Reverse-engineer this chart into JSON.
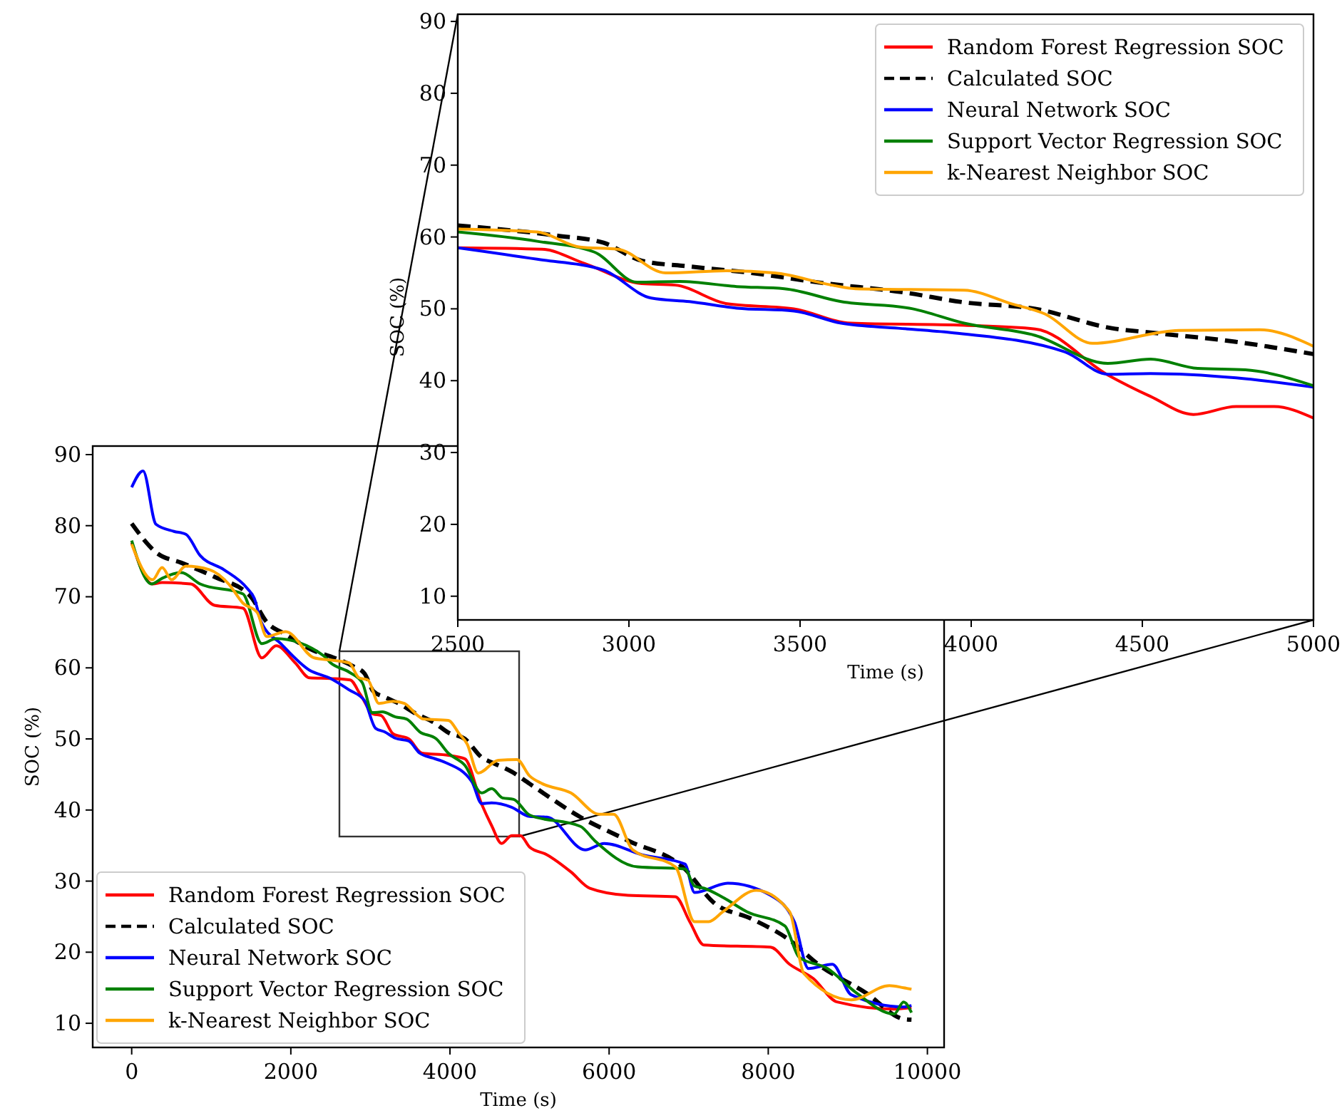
{
  "chart_data": [
    {
      "type": "line",
      "xlabel": "Time (s)",
      "ylabel": "SOC (%)",
      "xlim": [
        -490,
        10210
      ],
      "ylim": [
        6.6,
        91.2
      ],
      "xticks": [
        0,
        2000,
        4000,
        6000,
        8000,
        10000
      ],
      "yticks": [
        10,
        20,
        30,
        40,
        50,
        60,
        70,
        80,
        90
      ],
      "grid": false,
      "legend": "bottom left",
      "series": [
        {
          "name": "Random Forest Regression SOC",
          "color": "#ff0000",
          "line_style": "solid",
          "x": [
            0,
            263,
            382,
            740,
            1040,
            1398,
            1636,
            1816,
            2055,
            2235,
            2500,
            2746,
            2871,
            3037,
            3135,
            3287,
            3482,
            3649,
            3979,
            4187,
            4399,
            4524,
            4649,
            4774,
            4885,
            5000,
            5220,
            5520,
            5758,
            6237,
            6833,
            7013,
            7192,
            8029,
            8268,
            8566,
            8865,
            9582,
            9800
          ],
          "values": [
            77.6,
            71.8,
            72.0,
            71.8,
            68.8,
            68.4,
            61.4,
            63.1,
            60.7,
            58.6,
            58.5,
            58.3,
            56.3,
            53.5,
            53.3,
            50.7,
            50.0,
            48.0,
            47.7,
            47.2,
            40.8,
            37.8,
            35.3,
            36.4,
            36.4,
            34.8,
            33.7,
            31.3,
            29.0,
            28.0,
            27.8,
            24.3,
            21.0,
            20.7,
            18.3,
            16.3,
            13.0,
            12.0,
            12.2
          ]
        },
        {
          "name": "Calculated SOC",
          "color": "#000000",
          "line_style": "dashed",
          "x": [
            0,
            323,
            620,
            1040,
            1490,
            1700,
            1935,
            2290,
            2500,
            2787,
            2926,
            3037,
            3176,
            3357,
            3565,
            3801,
            3979,
            4187,
            4411,
            4524,
            4774,
            5000,
            5640,
            6237,
            6953,
            7312,
            7790,
            8268,
            8626,
            9224,
            9701,
            9800
          ],
          "values": [
            80.3,
            76.1,
            74.8,
            72.8,
            70.1,
            66.4,
            64.7,
            62.4,
            61.6,
            60.2,
            59.2,
            56.7,
            55.9,
            55.0,
            53.6,
            52.3,
            50.9,
            50.0,
            47.3,
            46.7,
            45.4,
            43.7,
            39.0,
            35.7,
            31.7,
            27.0,
            24.7,
            21.7,
            18.3,
            14.3,
            10.6,
            10.5
          ]
        },
        {
          "name": "Neural Network SOC",
          "color": "#0000ff",
          "line_style": "solid",
          "x": [
            0,
            143,
            305,
            530,
            680,
            860,
            1160,
            1450,
            1540,
            1630,
            1875,
            2230,
            2500,
            2732,
            2925,
            3065,
            3177,
            3315,
            3482,
            3620,
            3787,
            3940,
            4274,
            4399,
            4524,
            4774,
            5000,
            5220,
            5699,
            5938,
            6416,
            6953,
            7073,
            7491,
            8029,
            8327,
            8506,
            8805,
            9044,
            9701,
            9800
          ],
          "values": [
            85.4,
            87.7,
            80.2,
            79.2,
            78.8,
            75.8,
            73.8,
            71.2,
            69.8,
            66.4,
            63.4,
            59.7,
            58.5,
            56.9,
            55.4,
            51.5,
            51.0,
            50.1,
            49.7,
            48.0,
            47.3,
            46.7,
            44.0,
            40.9,
            41.0,
            40.4,
            39.1,
            39.0,
            34.4,
            35.3,
            33.7,
            32.4,
            28.4,
            29.7,
            28.0,
            24.3,
            17.7,
            18.3,
            14.0,
            12.3,
            12.5
          ]
        },
        {
          "name": "Support Vector Regression SOC",
          "color": "#008000",
          "line_style": "solid",
          "x": [
            0,
            250,
            382,
            620,
            860,
            1398,
            1636,
            1816,
            2413,
            2500,
            2732,
            2899,
            3024,
            3149,
            3315,
            3454,
            3620,
            3829,
            3979,
            4187,
            4399,
            4524,
            4662,
            4801,
            5000,
            5640,
            5818,
            6357,
            6953,
            7073,
            7192,
            7431,
            7730,
            8208,
            8387,
            8745,
            9104,
            9582,
            9701,
            9800
          ],
          "values": [
            77.9,
            71.8,
            72.6,
            73.4,
            71.8,
            70.4,
            63.4,
            64.1,
            61.7,
            60.7,
            59.4,
            57.9,
            53.7,
            53.8,
            53.1,
            52.8,
            51.0,
            50.0,
            48.0,
            46.3,
            42.4,
            43.0,
            41.7,
            41.5,
            39.3,
            37.7,
            35.7,
            32.0,
            31.7,
            29.3,
            29.0,
            27.7,
            25.7,
            23.7,
            19.3,
            17.7,
            14.3,
            11.3,
            13.0,
            11.5
          ]
        },
        {
          "name": "k-Nearest Neighbor SOC",
          "color": "#ffa500",
          "line_style": "solid",
          "x": [
            0,
            263,
            382,
            502,
            680,
            980,
            1219,
            1398,
            1577,
            1697,
            1935,
            2294,
            2500,
            2732,
            2857,
            2968,
            3107,
            3287,
            3426,
            3593,
            3662,
            3979,
            4118,
            4215,
            4354,
            4607,
            4842,
            5000,
            5161,
            5520,
            5878,
            6057,
            6296,
            6833,
            7073,
            7252,
            7431,
            7849,
            8268,
            8447,
            9044,
            9522,
            9701,
            9800
          ],
          "values": [
            77.4,
            72.4,
            74.1,
            72.4,
            74.3,
            73.8,
            71.8,
            69.1,
            67.8,
            64.4,
            65.1,
            61.4,
            61.1,
            60.7,
            58.6,
            58.3,
            55.0,
            55.3,
            55.0,
            53.3,
            52.8,
            52.6,
            50.7,
            49.3,
            45.2,
            47.0,
            47.1,
            44.8,
            43.7,
            42.4,
            39.4,
            39.4,
            34.4,
            32.0,
            24.3,
            24.3,
            25.7,
            28.7,
            25.7,
            17.0,
            13.3,
            15.3,
            15.0,
            14.8
          ]
        }
      ]
    },
    {
      "type": "line",
      "xlabel": "Time (s)",
      "ylabel": "SOC (%)",
      "xlim": [
        2500,
        5000
      ],
      "ylim": [
        6.7,
        91
      ],
      "xticks": [
        2500,
        3000,
        3500,
        4000,
        4500,
        5000
      ],
      "yticks": [
        10,
        20,
        30,
        40,
        50,
        60,
        70,
        80,
        90
      ],
      "grid": false,
      "legend": "top right",
      "series": [
        {
          "name": "Random Forest Regression SOC",
          "color": "#ff0000",
          "line_style": "solid",
          "x": [
            2500,
            2746,
            2871,
            3037,
            3135,
            3287,
            3482,
            3649,
            3979,
            4187,
            4399,
            4524,
            4649,
            4774,
            4885,
            5000
          ],
          "values": [
            58.5,
            58.3,
            56.3,
            53.5,
            53.3,
            50.7,
            50.0,
            48.0,
            47.7,
            47.2,
            40.8,
            37.8,
            35.3,
            36.4,
            36.4,
            34.8
          ]
        },
        {
          "name": "Calculated SOC",
          "color": "#000000",
          "line_style": "dashed",
          "x": [
            2500,
            2787,
            2926,
            3037,
            3176,
            3357,
            3565,
            3801,
            3979,
            4187,
            4411,
            4524,
            4774,
            5000
          ],
          "values": [
            61.6,
            60.2,
            59.2,
            56.7,
            55.9,
            55.0,
            53.6,
            52.3,
            50.9,
            50.0,
            47.3,
            46.7,
            45.4,
            43.7
          ]
        },
        {
          "name": "Neural Network SOC",
          "color": "#0000ff",
          "line_style": "solid",
          "x": [
            2500,
            2732,
            2925,
            3065,
            3177,
            3315,
            3482,
            3620,
            3787,
            3940,
            4274,
            4399,
            4524,
            4774,
            5000
          ],
          "values": [
            58.5,
            56.9,
            55.4,
            51.5,
            51.0,
            50.1,
            49.7,
            48.0,
            47.3,
            46.7,
            44.0,
            40.9,
            41.0,
            40.4,
            39.1
          ]
        },
        {
          "name": "Support Vector Regression SOC",
          "color": "#008000",
          "line_style": "solid",
          "x": [
            2500,
            2732,
            2899,
            3024,
            3149,
            3315,
            3454,
            3620,
            3829,
            3979,
            4187,
            4399,
            4524,
            4662,
            4801,
            5000
          ],
          "values": [
            60.7,
            59.4,
            57.9,
            53.7,
            53.8,
            53.1,
            52.8,
            51.0,
            50.0,
            48.0,
            46.3,
            42.4,
            43.0,
            41.7,
            41.5,
            39.3
          ]
        },
        {
          "name": "k-Nearest Neighbor SOC",
          "color": "#ffa500",
          "line_style": "solid",
          "x": [
            2500,
            2732,
            2857,
            2968,
            3107,
            3287,
            3426,
            3593,
            3662,
            3979,
            4118,
            4215,
            4354,
            4607,
            4842,
            5000
          ],
          "values": [
            61.1,
            60.7,
            58.6,
            58.3,
            55.0,
            55.3,
            55.0,
            53.3,
            52.8,
            52.6,
            50.7,
            49.3,
            45.2,
            47.0,
            47.1,
            44.8
          ]
        }
      ]
    }
  ]
}
